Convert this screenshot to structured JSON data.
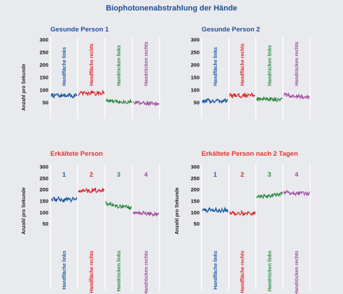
{
  "page": {
    "title": "Biophotonenabstrahlung  der Hände",
    "background": "#e9eaed",
    "title_color": "#1d4f91",
    "panel_title_color": "#1f4fa0",
    "panel_title_color_sick": "#e2332e"
  },
  "chart_data": [
    {
      "type": "line",
      "title": "Gesunde Person 1",
      "ylabel": "Anzahl pro Sekunde",
      "ylim": [
        0,
        300
      ],
      "yticks": [
        50,
        100,
        150,
        200,
        250,
        300
      ],
      "grid": "vertical separators",
      "segment_label_position": "inside",
      "series": [
        {
          "name": "Handfläche links",
          "color": "#1d5aa6",
          "values": [
            78,
            80,
            76,
            79,
            82,
            77,
            75,
            80,
            83,
            78,
            76,
            79,
            81,
            77,
            74,
            78,
            80,
            79
          ]
        },
        {
          "name": "Handfläche rechts",
          "color": "#e0262d",
          "values": [
            84,
            86,
            88,
            85,
            90,
            87,
            83,
            86,
            89,
            92,
            86,
            84,
            88,
            87,
            85,
            89,
            91,
            86
          ]
        },
        {
          "name": "Handrücken links",
          "color": "#2d8a43",
          "values": [
            62,
            58,
            55,
            57,
            54,
            56,
            53,
            55,
            57,
            52,
            54,
            56,
            53,
            55,
            51,
            54,
            56,
            53
          ]
        },
        {
          "name": "Handrücken rechts",
          "color": "#a04ea0",
          "values": [
            55,
            52,
            50,
            53,
            49,
            51,
            48,
            50,
            47,
            49,
            46,
            48,
            45,
            47,
            44,
            46,
            45,
            43
          ]
        }
      ]
    },
    {
      "type": "line",
      "title": "Gesunde Person 2",
      "ylabel": "",
      "ylim": [
        0,
        300
      ],
      "yticks": [
        50,
        100,
        150,
        200,
        250,
        300
      ],
      "grid": "vertical separators",
      "segment_label_position": "inside",
      "series": [
        {
          "name": "Handfläche links",
          "color": "#1d5aa6",
          "values": [
            55,
            58,
            52,
            57,
            60,
            54,
            56,
            59,
            53,
            57,
            61,
            55,
            58,
            54,
            57,
            60,
            56,
            58
          ]
        },
        {
          "name": "Handfläche rechts",
          "color": "#e0262d",
          "values": [
            78,
            80,
            76,
            79,
            82,
            77,
            80,
            78,
            75,
            79,
            81,
            77,
            80,
            76,
            78,
            82,
            79,
            77
          ]
        },
        {
          "name": "Handrücken links",
          "color": "#2d8a43",
          "values": [
            68,
            64,
            66,
            62,
            65,
            67,
            63,
            65,
            61,
            64,
            66,
            62,
            65,
            63,
            60,
            64,
            62,
            65
          ]
        },
        {
          "name": "Handrücken rechts",
          "color": "#a04ea0",
          "values": [
            80,
            82,
            78,
            81,
            76,
            79,
            77,
            75,
            78,
            74,
            76,
            73,
            75,
            72,
            74,
            71,
            73,
            70
          ]
        }
      ]
    },
    {
      "type": "line",
      "title": "Erkältete Person",
      "ylabel": "Anzahl pro Sekunde",
      "ylim": [
        0,
        300
      ],
      "yticks": [
        50,
        100,
        150,
        200,
        250,
        300
      ],
      "grid": "vertical separators",
      "segment_label_position": "below",
      "segment_numbers": [
        "1",
        "2",
        "3",
        "4"
      ],
      "series": [
        {
          "name": "Handfläche links",
          "color": "#1d5aa6",
          "values": [
            160,
            156,
            162,
            150,
            158,
            165,
            154,
            160,
            148,
            157,
            163,
            155,
            161,
            152,
            159,
            166,
            156,
            162
          ]
        },
        {
          "name": "Handfläche rechts",
          "color": "#e0262d",
          "values": [
            192,
            196,
            190,
            198,
            194,
            200,
            193,
            197,
            191,
            199,
            195,
            201,
            194,
            198,
            192,
            196,
            199,
            195
          ]
        },
        {
          "name": "Handrücken links",
          "color": "#2d8a43",
          "values": [
            145,
            138,
            132,
            140,
            130,
            135,
            128,
            133,
            126,
            131,
            124,
            129,
            122,
            127,
            120,
            125,
            118,
            123
          ]
        },
        {
          "name": "Handrücken rechts",
          "color": "#a04ea0",
          "values": [
            104,
            100,
            98,
            102,
            96,
            99,
            95,
            101,
            97,
            94,
            98,
            93,
            96,
            92,
            95,
            91,
            94,
            93
          ]
        }
      ]
    },
    {
      "type": "line",
      "title": "Erkältete Person nach  2 Tagen",
      "ylabel": "Anzahl pro Sekunde",
      "ylim": [
        0,
        300
      ],
      "yticks": [
        50,
        100,
        150,
        200,
        250,
        300
      ],
      "grid": "vertical separators",
      "segment_label_position": "below",
      "segment_numbers": [
        "1",
        "2",
        "3",
        "4"
      ],
      "series": [
        {
          "name": "Handfläche links",
          "color": "#1d5aa6",
          "values": [
            112,
            108,
            115,
            105,
            110,
            118,
            106,
            112,
            109,
            116,
            104,
            111,
            107,
            113,
            108,
            115,
            110,
            106
          ]
        },
        {
          "name": "Handfläche rechts",
          "color": "#e0262d",
          "values": [
            100,
            96,
            102,
            94,
            98,
            92,
            99,
            95,
            101,
            93,
            97,
            90,
            96,
            99,
            94,
            98,
            95,
            100
          ]
        },
        {
          "name": "Handrücken links",
          "color": "#2d8a43",
          "values": [
            165,
            170,
            168,
            174,
            166,
            172,
            176,
            169,
            175,
            171,
            178,
            173,
            180,
            175,
            182,
            177,
            184,
            186
          ]
        },
        {
          "name": "Handrücken rechts",
          "color": "#a04ea0",
          "values": [
            188,
            184,
            190,
            186,
            182,
            189,
            185,
            187,
            181,
            186,
            183,
            188,
            182,
            185,
            180,
            184,
            182,
            186
          ]
        }
      ]
    }
  ]
}
